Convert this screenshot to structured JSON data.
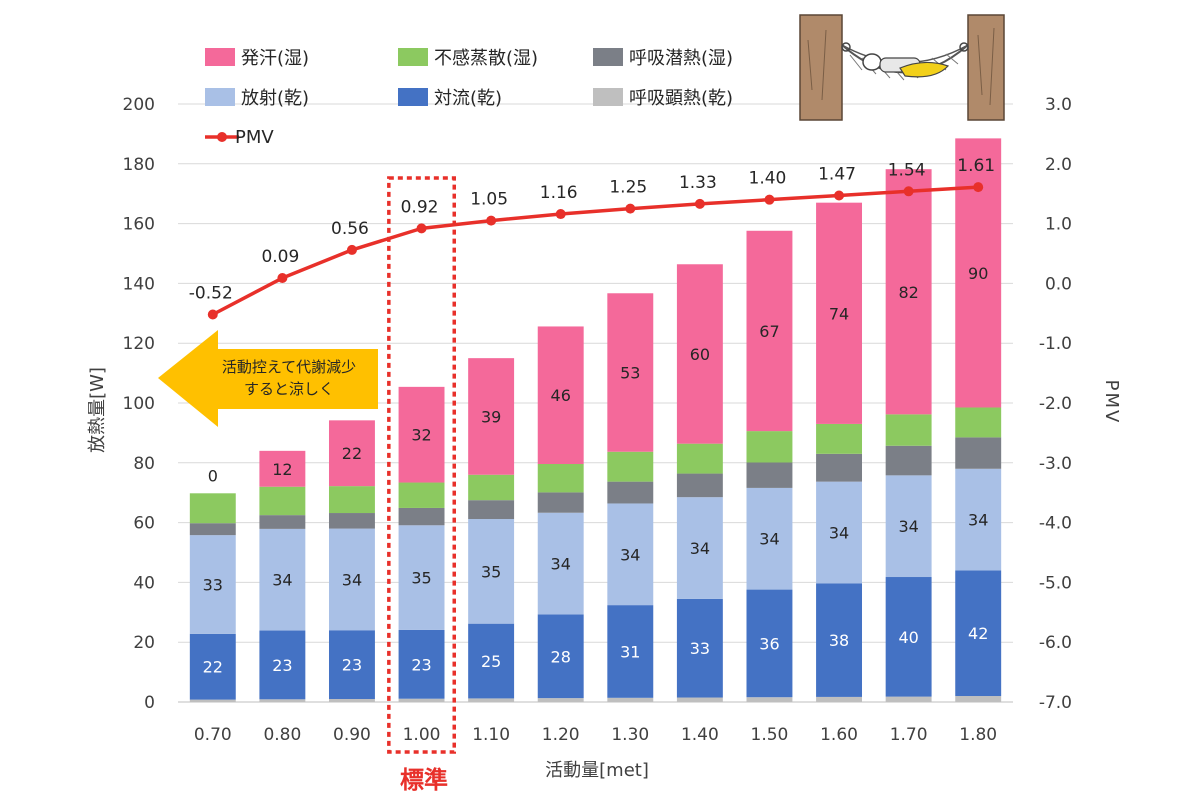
{
  "chart_data": {
    "type": "bar",
    "subtype": "stacked-bar-with-line",
    "xlabel": "活動量[met]",
    "ylabel_left": "放熱量[W]",
    "ylabel_right": "PMV",
    "ylim_left": [
      0,
      200
    ],
    "ylim_right": [
      -7.0,
      3.0
    ],
    "yticks_left": [
      "0",
      "20",
      "40",
      "60",
      "80",
      "100",
      "120",
      "140",
      "160",
      "180",
      "200"
    ],
    "yticks_right": [
      "-7.0",
      "-6.0",
      "-5.0",
      "-4.0",
      "-3.0",
      "-2.0",
      "-1.0",
      "0.0",
      "1.0",
      "2.0",
      "3.0"
    ],
    "categories": [
      "0.70",
      "0.80",
      "0.90",
      "1.00",
      "1.10",
      "1.20",
      "1.30",
      "1.40",
      "1.50",
      "1.60",
      "1.70",
      "1.80"
    ],
    "grid": true,
    "series": [
      {
        "name": "呼吸顕熱(乾)",
        "color": "#bfbfbf",
        "values": [
          0.8,
          0.9,
          1.0,
          1.1,
          1.2,
          1.3,
          1.4,
          1.5,
          1.6,
          1.7,
          1.8,
          2.0
        ],
        "show_labels": false
      },
      {
        "name": "対流(乾)",
        "color": "#4472c4",
        "values": [
          22,
          23,
          23,
          23,
          25,
          28,
          31,
          33,
          36,
          38,
          40,
          42
        ],
        "labels": [
          "22",
          "23",
          "23",
          "23",
          "25",
          "28",
          "31",
          "33",
          "36",
          "38",
          "40",
          "42"
        ],
        "label_color": "#ffffff"
      },
      {
        "name": "放射(乾)",
        "color": "#a9c0e6",
        "values": [
          33,
          34,
          34,
          35,
          35,
          34,
          34,
          34,
          34,
          34,
          34,
          34
        ],
        "labels": [
          "33",
          "34",
          "34",
          "35",
          "35",
          "34",
          "34",
          "34",
          "34",
          "34",
          "34",
          "34"
        ],
        "label_color": "#262626"
      },
      {
        "name": "呼吸潜熱(湿)",
        "color": "#7b7f87",
        "values": [
          4,
          4.6,
          5.2,
          5.8,
          6.3,
          6.8,
          7.3,
          7.9,
          8.5,
          9.3,
          9.9,
          10.5
        ],
        "show_labels": false
      },
      {
        "name": "不感蒸散(湿)",
        "color": "#8cc960",
        "values": [
          10,
          9.5,
          9,
          8.5,
          8.5,
          9.5,
          10,
          10,
          10.5,
          10,
          10.5,
          10
        ],
        "show_labels": false
      },
      {
        "name": "発汗(湿)",
        "color": "#f4699a",
        "values": [
          0,
          12,
          22,
          32,
          39,
          46,
          53,
          60,
          67,
          74,
          82,
          90
        ],
        "labels": [
          "0",
          "12",
          "22",
          "32",
          "39",
          "46",
          "53",
          "60",
          "67",
          "74",
          "82",
          "90"
        ],
        "label_color": "#262626"
      }
    ],
    "line": {
      "name": "PMV",
      "color": "#e8302a",
      "values": [
        -0.52,
        0.09,
        0.56,
        0.92,
        1.05,
        1.16,
        1.25,
        1.33,
        1.4,
        1.47,
        1.54,
        1.61
      ],
      "labels": [
        "-0.52",
        "0.09",
        "0.56",
        "0.92",
        "1.05",
        "1.16",
        "1.25",
        "1.33",
        "1.40",
        "1.47",
        "1.54",
        "1.61"
      ]
    },
    "highlight": {
      "category_index": 3,
      "label": "標準",
      "color": "#e8302a"
    },
    "annotation_arrow": {
      "lines": [
        "活動控えて代謝減少",
        "すると涼しく"
      ],
      "color": "#ffc000"
    },
    "legend_order": [
      "発汗(湿)",
      "不感蒸散(湿)",
      "呼吸潜熱(湿)",
      "放射(乾)",
      "対流(乾)",
      "呼吸顕熱(乾)",
      "PMV"
    ],
    "legend_position": "top"
  }
}
